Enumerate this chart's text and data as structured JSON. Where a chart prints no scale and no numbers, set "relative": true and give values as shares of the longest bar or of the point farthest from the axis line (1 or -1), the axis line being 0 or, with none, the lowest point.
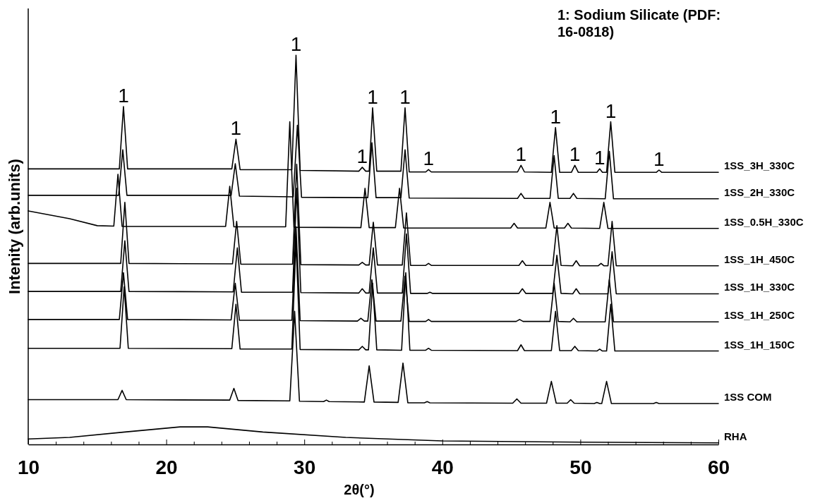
{
  "chart_data": {
    "type": "line",
    "relative": true,
    "xlabel": "2θ(°)",
    "ylabel": "Intenity (arb.units)",
    "xlim": [
      10,
      60
    ],
    "xticks": [
      10,
      {
        "value": 12,
        "label": null
      },
      {
        "value": 14,
        "label": null
      },
      {
        "value": 16,
        "label": null
      },
      {
        "value": 18,
        "label": null
      },
      20,
      {
        "value": 22,
        "label": null
      },
      {
        "value": 24,
        "label": null
      },
      {
        "value": 26,
        "label": null
      },
      {
        "value": 28,
        "label": null
      },
      30,
      {
        "value": 32,
        "label": null
      },
      {
        "value": 34,
        "label": null
      },
      {
        "value": 36,
        "label": null
      },
      {
        "value": 38,
        "label": null
      },
      40,
      {
        "value": 42,
        "label": null
      },
      {
        "value": 44,
        "label": null
      },
      {
        "value": 46,
        "label": null
      },
      {
        "value": 48,
        "label": null
      },
      50,
      {
        "value": 52,
        "label": null
      },
      {
        "value": 54,
        "label": null
      },
      {
        "value": 56,
        "label": null
      },
      {
        "value": 58,
        "label": null
      },
      60
    ],
    "legend": false,
    "grid": false,
    "marker": "none",
    "line_style": "solid",
    "series": [
      {
        "name": "1SS_3H_330C",
        "color": "#000000",
        "x": [
          10,
          16.6,
          16.9,
          17.2,
          24.75,
          25.05,
          25.35,
          29.1,
          29.4,
          29.7,
          33.95,
          34.2,
          34.45,
          34.7,
          34.95,
          35.25,
          37.0,
          37.3,
          37.6,
          38.8,
          39.0,
          39.2,
          45.45,
          45.7,
          45.95,
          47.9,
          48.2,
          48.5,
          49.35,
          49.6,
          49.85,
          51.2,
          51.4,
          51.6,
          51.9,
          52.2,
          52.5,
          55.5,
          55.7,
          55.9,
          60
        ],
        "values": [
          0.708,
          0.708,
          0.868,
          0.708,
          0.708,
          0.784,
          0.706,
          0.706,
          1.0,
          0.704,
          0.702,
          0.712,
          0.702,
          0.702,
          0.865,
          0.702,
          0.702,
          0.865,
          0.7,
          0.7,
          0.706,
          0.7,
          0.7,
          0.717,
          0.7,
          0.699,
          0.814,
          0.699,
          0.699,
          0.717,
          0.699,
          0.699,
          0.708,
          0.699,
          0.699,
          0.829,
          0.699,
          0.699,
          0.705,
          0.699,
          0.699
        ]
      },
      {
        "name": "1SS_2H_330C",
        "color": "#000000",
        "x": [
          10,
          16.55,
          16.85,
          17.15,
          24.7,
          25.0,
          25.3,
          29.2,
          29.5,
          29.8,
          34.6,
          34.9,
          35.2,
          37.0,
          37.3,
          37.6,
          45.45,
          45.7,
          45.95,
          47.8,
          48.1,
          48.4,
          49.25,
          49.5,
          49.75,
          51.8,
          52.1,
          52.4,
          60
        ],
        "values": [
          0.64,
          0.64,
          0.757,
          0.64,
          0.64,
          0.721,
          0.638,
          0.636,
          0.82,
          0.635,
          0.634,
          0.775,
          0.634,
          0.634,
          0.757,
          0.633,
          0.632,
          0.645,
          0.632,
          0.632,
          0.742,
          0.632,
          0.632,
          0.645,
          0.632,
          0.631,
          0.753,
          0.631,
          0.631
        ]
      },
      {
        "name": "1SS_0.5H_330C",
        "color": "#000000",
        "x": [
          10,
          13,
          15,
          16.2,
          16.5,
          16.8,
          24.3,
          24.6,
          24.9,
          28.65,
          28.95,
          29.25,
          34.1,
          34.4,
          34.7,
          36.6,
          36.9,
          37.2,
          44.95,
          45.2,
          45.45,
          47.5,
          47.8,
          48.1,
          48.85,
          49.1,
          49.35,
          51.4,
          51.7,
          52.0,
          60
        ],
        "values": [
          0.6,
          0.58,
          0.562,
          0.561,
          0.694,
          0.56,
          0.56,
          0.663,
          0.559,
          0.559,
          0.829,
          0.558,
          0.557,
          0.658,
          0.557,
          0.557,
          0.658,
          0.556,
          0.556,
          0.568,
          0.556,
          0.556,
          0.622,
          0.556,
          0.556,
          0.568,
          0.556,
          0.555,
          0.622,
          0.555,
          0.555
        ]
      },
      {
        "name": "1SS_1H_450C",
        "color": "#000000",
        "x": [
          10,
          16.7,
          17.0,
          17.3,
          24.8,
          25.1,
          25.4,
          29.15,
          29.45,
          29.75,
          33.95,
          34.2,
          34.45,
          34.7,
          35.0,
          35.3,
          37.1,
          37.4,
          37.7,
          38.8,
          39.0,
          39.2,
          45.55,
          45.8,
          46.05,
          48.0,
          48.3,
          48.6,
          49.45,
          49.7,
          49.95,
          51.3,
          51.5,
          51.7,
          52.0,
          52.3,
          52.6,
          60
        ],
        "values": [
          0.465,
          0.465,
          0.622,
          0.465,
          0.464,
          0.573,
          0.463,
          0.463,
          0.72,
          0.462,
          0.461,
          0.468,
          0.461,
          0.461,
          0.571,
          0.461,
          0.461,
          0.595,
          0.46,
          0.46,
          0.465,
          0.46,
          0.46,
          0.472,
          0.46,
          0.46,
          0.562,
          0.46,
          0.459,
          0.472,
          0.459,
          0.459,
          0.465,
          0.459,
          0.459,
          0.573,
          0.459,
          0.459
        ]
      },
      {
        "name": "1SS_1H_330C",
        "color": "#000000",
        "x": [
          10,
          16.7,
          17.0,
          17.3,
          24.85,
          25.15,
          25.45,
          29.15,
          29.45,
          29.75,
          33.95,
          34.2,
          34.45,
          34.7,
          35.0,
          35.3,
          37.1,
          37.4,
          37.7,
          38.9,
          39.1,
          39.3,
          45.55,
          45.8,
          46.05,
          48.0,
          48.3,
          48.6,
          49.45,
          49.7,
          49.95,
          52.0,
          52.3,
          52.6,
          60
        ],
        "values": [
          0.393,
          0.393,
          0.523,
          0.393,
          0.392,
          0.505,
          0.391,
          0.391,
          0.658,
          0.39,
          0.389,
          0.4,
          0.389,
          0.389,
          0.505,
          0.389,
          0.389,
          0.541,
          0.388,
          0.388,
          0.391,
          0.388,
          0.388,
          0.4,
          0.388,
          0.388,
          0.486,
          0.388,
          0.387,
          0.4,
          0.387,
          0.387,
          0.495,
          0.387,
          0.387
        ]
      },
      {
        "name": "1SS_1H_250C",
        "color": "#000000",
        "x": [
          10,
          16.6,
          16.9,
          17.2,
          24.7,
          25.0,
          25.3,
          29.1,
          29.4,
          29.7,
          33.85,
          34.1,
          34.35,
          34.6,
          34.9,
          35.2,
          37.0,
          37.3,
          37.6,
          38.8,
          39.0,
          39.2,
          45.35,
          45.6,
          45.85,
          47.8,
          48.1,
          48.4,
          49.25,
          49.5,
          49.75,
          51.8,
          52.1,
          52.4,
          60
        ],
        "values": [
          0.321,
          0.321,
          0.441,
          0.321,
          0.32,
          0.414,
          0.319,
          0.319,
          0.559,
          0.318,
          0.317,
          0.324,
          0.317,
          0.317,
          0.423,
          0.317,
          0.317,
          0.432,
          0.316,
          0.316,
          0.321,
          0.316,
          0.316,
          0.321,
          0.316,
          0.316,
          0.414,
          0.316,
          0.315,
          0.324,
          0.315,
          0.315,
          0.423,
          0.315,
          0.315
        ]
      },
      {
        "name": "1SS_1H_150C",
        "color": "#000000",
        "x": [
          10,
          16.65,
          16.95,
          17.25,
          24.75,
          25.05,
          25.35,
          29.1,
          29.4,
          29.7,
          33.95,
          34.2,
          34.45,
          34.65,
          34.95,
          35.25,
          37.05,
          37.35,
          37.65,
          38.8,
          39.0,
          39.2,
          45.45,
          45.7,
          45.95,
          47.9,
          48.2,
          48.5,
          49.35,
          49.6,
          49.85,
          51.2,
          51.4,
          51.6,
          51.9,
          52.2,
          52.5,
          60
        ],
        "values": [
          0.247,
          0.247,
          0.405,
          0.247,
          0.246,
          0.36,
          0.245,
          0.245,
          0.523,
          0.244,
          0.243,
          0.252,
          0.243,
          0.243,
          0.414,
          0.243,
          0.242,
          0.441,
          0.242,
          0.242,
          0.247,
          0.242,
          0.241,
          0.256,
          0.241,
          0.241,
          0.342,
          0.241,
          0.241,
          0.252,
          0.241,
          0.24,
          0.245,
          0.24,
          0.24,
          0.36,
          0.24,
          0.24
        ]
      },
      {
        "name": "1SS COM",
        "color": "#000000",
        "x": [
          10,
          16.5,
          16.8,
          17.1,
          24.6,
          24.9,
          25.2,
          28.95,
          29.3,
          29.65,
          31.4,
          31.6,
          31.8,
          34.35,
          34.7,
          35.05,
          36.8,
          37.15,
          37.5,
          38.7,
          38.9,
          39.1,
          45.1,
          45.4,
          45.7,
          47.55,
          47.9,
          48.25,
          49.05,
          49.3,
          49.55,
          51.0,
          51.2,
          51.4,
          51.55,
          51.9,
          52.25,
          55.3,
          55.5,
          55.7,
          60
        ],
        "values": [
          0.115,
          0.115,
          0.139,
          0.115,
          0.114,
          0.144,
          0.113,
          0.112,
          0.342,
          0.111,
          0.11,
          0.114,
          0.11,
          0.109,
          0.202,
          0.109,
          0.108,
          0.209,
          0.107,
          0.107,
          0.11,
          0.107,
          0.106,
          0.117,
          0.106,
          0.106,
          0.162,
          0.106,
          0.106,
          0.115,
          0.106,
          0.105,
          0.108,
          0.105,
          0.105,
          0.162,
          0.105,
          0.105,
          0.108,
          0.105,
          0.105
        ]
      },
      {
        "name": "RHA",
        "color": "#000000",
        "x": [
          10,
          13,
          17,
          21,
          23,
          27,
          33,
          40,
          50,
          60
        ],
        "values": [
          0.014,
          0.018,
          0.032,
          0.045,
          0.045,
          0.032,
          0.018,
          0.009,
          0.006,
          0.004
        ]
      }
    ],
    "annotations": [
      "1: Sodium Silicate (PDF: 16-0818)",
      {
        "text": "1",
        "x": 16.9,
        "y": 0.868
      },
      {
        "text": "1",
        "x": 25.05,
        "y": 0.784
      },
      {
        "text": "1",
        "x": 29.4,
        "y": 1.0
      },
      {
        "text": "1",
        "x": 34.2,
        "y": 0.712
      },
      {
        "text": "1",
        "x": 34.95,
        "y": 0.865
      },
      {
        "text": "1",
        "x": 37.3,
        "y": 0.865
      },
      {
        "text": "1",
        "x": 39.0,
        "y": 0.706
      },
      {
        "text": "1",
        "x": 45.7,
        "y": 0.717
      },
      {
        "text": "1",
        "x": 48.2,
        "y": 0.814
      },
      {
        "text": "1",
        "x": 49.6,
        "y": 0.717
      },
      {
        "text": "1",
        "x": 51.4,
        "y": 0.708
      },
      {
        "text": "1",
        "x": 52.2,
        "y": 0.829
      },
      {
        "text": "1",
        "x": 55.7,
        "y": 0.705
      }
    ]
  }
}
